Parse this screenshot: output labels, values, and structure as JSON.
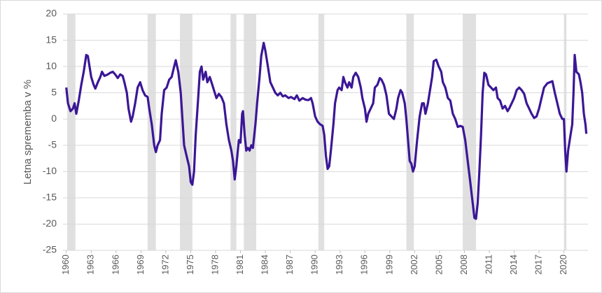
{
  "chart_data": {
    "type": "line",
    "y_label": "Letna sprememba v %",
    "xlim": [
      1959.6,
      2022.9
    ],
    "xticks": [
      1960,
      1963,
      1966,
      1969,
      1972,
      1975,
      1978,
      1981,
      1984,
      1987,
      1990,
      1993,
      1996,
      1999,
      2002,
      2005,
      2008,
      2011,
      2014,
      2017,
      2020
    ],
    "ylim": [
      -25,
      20
    ],
    "yticks": [
      -25,
      -20,
      -15,
      -10,
      -5,
      0,
      5,
      10,
      15,
      20
    ],
    "grid": true,
    "recession_color": "#e0e0e0",
    "recessions": [
      [
        1960.1,
        1961.1
      ],
      [
        1969.8,
        1970.8
      ],
      [
        1973.7,
        1975.2
      ],
      [
        1979.8,
        1980.5
      ],
      [
        1981.4,
        1982.9
      ],
      [
        1990.4,
        1991.1
      ],
      [
        2001.0,
        2001.9
      ],
      [
        2007.8,
        2009.4
      ],
      [
        2020.0,
        2020.3
      ]
    ],
    "series": [
      {
        "color": "#3b1796",
        "x": [
          1960.0,
          1960.2,
          1960.5,
          1960.8,
          1961.0,
          1961.2,
          1961.5,
          1961.8,
          1962.1,
          1962.4,
          1962.6,
          1962.8,
          1963.0,
          1963.3,
          1963.5,
          1963.8,
          1964.1,
          1964.3,
          1964.6,
          1965.0,
          1965.3,
          1965.6,
          1965.9,
          1966.2,
          1966.5,
          1966.8,
          1967.0,
          1967.3,
          1967.5,
          1967.8,
          1968.0,
          1968.3,
          1968.6,
          1968.9,
          1969.2,
          1969.5,
          1969.8,
          1970.0,
          1970.3,
          1970.6,
          1970.8,
          1971.0,
          1971.3,
          1971.5,
          1971.8,
          1972.1,
          1972.4,
          1972.7,
          1973.0,
          1973.2,
          1973.5,
          1973.8,
          1974.0,
          1974.2,
          1974.5,
          1974.8,
          1975.0,
          1975.2,
          1975.4,
          1975.6,
          1975.9,
          1976.1,
          1976.3,
          1976.5,
          1976.8,
          1977.0,
          1977.3,
          1977.6,
          1977.9,
          1978.1,
          1978.4,
          1978.7,
          1979.0,
          1979.3,
          1979.6,
          1979.9,
          1980.1,
          1980.3,
          1980.5,
          1980.8,
          1981.0,
          1981.2,
          1981.3,
          1981.5,
          1981.7,
          1981.9,
          1982.1,
          1982.3,
          1982.5,
          1982.8,
          1983.0,
          1983.3,
          1983.5,
          1983.8,
          1984.0,
          1984.3,
          1984.6,
          1984.9,
          1985.2,
          1985.5,
          1985.8,
          1986.1,
          1986.4,
          1986.8,
          1987.1,
          1987.5,
          1987.8,
          1988.1,
          1988.5,
          1988.8,
          1989.2,
          1989.5,
          1989.7,
          1990.0,
          1990.3,
          1990.6,
          1990.9,
          1991.1,
          1991.3,
          1991.5,
          1991.7,
          1991.9,
          1992.2,
          1992.4,
          1992.7,
          1992.9,
          1993.2,
          1993.4,
          1993.6,
          1993.9,
          1994.1,
          1994.4,
          1994.6,
          1994.9,
          1995.2,
          1995.5,
          1995.7,
          1996.0,
          1996.2,
          1996.4,
          1996.7,
          1997.0,
          1997.2,
          1997.5,
          1997.8,
          1998.0,
          1998.3,
          1998.6,
          1998.9,
          1999.2,
          1999.5,
          1999.8,
          2000.0,
          2000.3,
          2000.5,
          2000.8,
          2001.0,
          2001.2,
          2001.4,
          2001.6,
          2001.8,
          2002.0,
          2002.3,
          2002.6,
          2002.9,
          2003.1,
          2003.3,
          2003.6,
          2003.9,
          2004.1,
          2004.3,
          2004.6,
          2004.9,
          2005.2,
          2005.4,
          2005.7,
          2006.0,
          2006.3,
          2006.6,
          2006.9,
          2007.2,
          2007.5,
          2007.8,
          2008.1,
          2008.4,
          2008.7,
          2009.0,
          2009.2,
          2009.4,
          2009.6,
          2009.8,
          2010.0,
          2010.2,
          2010.4,
          2010.6,
          2010.9,
          2011.2,
          2011.5,
          2011.8,
          2012.0,
          2012.3,
          2012.6,
          2012.9,
          2013.2,
          2013.4,
          2013.7,
          2014.0,
          2014.3,
          2014.6,
          2014.9,
          2015.2,
          2015.5,
          2015.8,
          2016.1,
          2016.4,
          2016.7,
          2017.0,
          2017.3,
          2017.6,
          2018.0,
          2018.3,
          2018.6,
          2018.9,
          2019.2,
          2019.5,
          2019.8,
          2020.0,
          2020.15,
          2020.3,
          2020.5,
          2020.8,
          2021.0,
          2021.15,
          2021.3,
          2021.5,
          2021.8,
          2022.0,
          2022.2,
          2022.4,
          2022.6,
          2022.7
        ],
        "values": [
          6,
          3,
          1.5,
          2,
          3,
          1,
          3.5,
          6.5,
          9,
          12.2,
          12,
          10,
          8,
          6.5,
          5.8,
          7,
          8,
          9,
          8.2,
          8.5,
          8.8,
          9,
          8.5,
          7.8,
          8.5,
          8.2,
          7,
          5,
          2,
          -0.5,
          0.5,
          3,
          6,
          7,
          5.5,
          4.5,
          4.2,
          2,
          -1,
          -5,
          -6.3,
          -5,
          -4,
          1,
          5.5,
          6,
          7.5,
          8,
          10,
          11.2,
          9,
          5,
          0,
          -5,
          -7,
          -9,
          -12,
          -12.5,
          -10,
          -3,
          4,
          9,
          10,
          7.5,
          9,
          7,
          8,
          6.5,
          5,
          4,
          4.8,
          4.2,
          3,
          -1,
          -4,
          -6,
          -8,
          -11.5,
          -9,
          -4,
          -4.5,
          1,
          1.5,
          -3,
          -6,
          -5.5,
          -6,
          -5,
          -5.5,
          -1,
          3,
          8,
          12,
          14.5,
          13,
          10,
          7,
          6,
          5,
          4.5,
          5,
          4.3,
          4.5,
          4,
          4.2,
          3.8,
          4.5,
          3.5,
          4,
          3.7,
          3.6,
          4,
          3,
          0.5,
          -0.5,
          -1,
          -1.3,
          -3,
          -7,
          -9.5,
          -9,
          -6,
          -1,
          3,
          5.5,
          6,
          5.5,
          8,
          7,
          6,
          7,
          6,
          8,
          8.8,
          8,
          6,
          4,
          2,
          -0.5,
          1,
          2,
          3,
          6,
          6.5,
          7.8,
          7.5,
          6.5,
          4.5,
          1,
          0.5,
          0,
          2,
          4,
          5.5,
          5,
          3,
          0,
          -4,
          -8,
          -8.5,
          -10,
          -9,
          -4,
          0.5,
          3,
          3,
          1,
          3,
          6,
          8,
          11,
          11.3,
          10,
          9,
          7,
          6,
          4,
          3.5,
          1,
          0,
          -1.5,
          -1.3,
          -1.5,
          -4,
          -8,
          -12,
          -16,
          -18.8,
          -19,
          -16,
          -10,
          -3,
          5,
          8.8,
          8.5,
          6.5,
          6,
          5.5,
          6,
          4,
          3.5,
          2,
          2.5,
          1.5,
          2,
          3,
          4,
          5.5,
          6,
          5.5,
          4.8,
          3,
          2,
          1,
          0.2,
          0.5,
          2,
          4,
          6,
          6.8,
          7,
          7.2,
          5,
          3,
          1,
          0,
          0,
          -6,
          -10,
          -6,
          -3,
          -1,
          5,
          12.2,
          9,
          8.5,
          7,
          5,
          1,
          -1,
          -2.8
        ]
      }
    ]
  }
}
